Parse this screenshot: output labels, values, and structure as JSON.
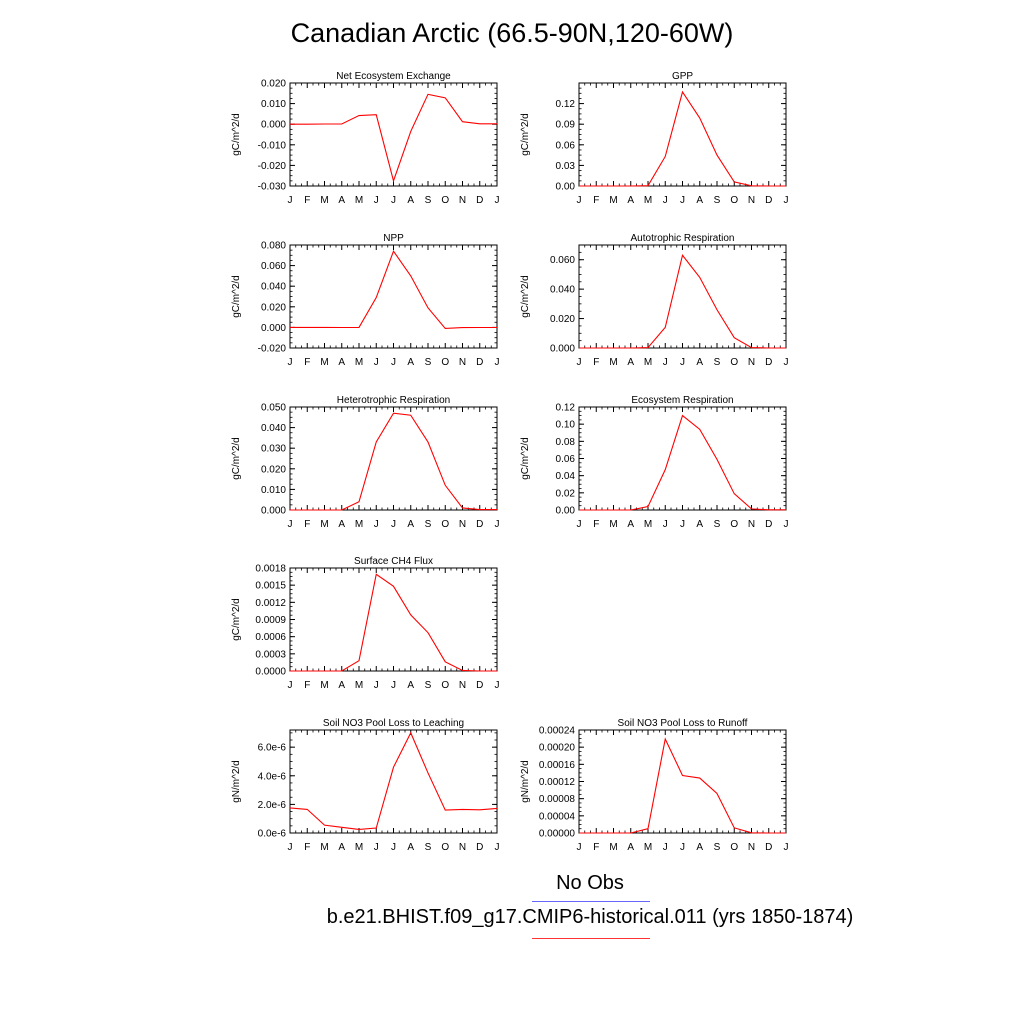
{
  "title": "Canadian Arctic (66.5-90N,120-60W)",
  "month_labels": [
    "J",
    "F",
    "M",
    "A",
    "M",
    "J",
    "J",
    "A",
    "S",
    "O",
    "N",
    "D",
    "J"
  ],
  "legend": {
    "obs_label": "No Obs",
    "obs_color": "#6666ff",
    "case_label": "b.e21.BHIST.f09_g17.CMIP6-historical.011 (yrs 1850-1874)",
    "case_color": "#ff3333"
  },
  "chart_data": [
    {
      "type": "line",
      "title": "Net Ecosystem Exchange",
      "ylabel": "gC/m^2/d",
      "x": [
        "J",
        "F",
        "M",
        "A",
        "M",
        "J",
        "J",
        "A",
        "S",
        "O",
        "N",
        "D",
        "J"
      ],
      "ylim": [
        -0.03,
        0.02
      ],
      "yticks": [
        -0.03,
        -0.02,
        -0.01,
        0.0,
        0.01,
        0.02
      ],
      "yticklabels": [
        "-0.030",
        "-0.020",
        "-0.010",
        "0.000",
        "0.010",
        "0.020"
      ],
      "series": [
        {
          "values": [
            0.0,
            0.0,
            0.0001,
            0.0001,
            0.0042,
            0.0046,
            -0.0275,
            -0.0035,
            0.0145,
            0.0128,
            0.0012,
            0.0002,
            0.0002
          ],
          "color": "#ff0000"
        }
      ]
    },
    {
      "type": "line",
      "title": "GPP",
      "ylabel": "gC/m^2/d",
      "x": [
        "J",
        "F",
        "M",
        "A",
        "M",
        "J",
        "J",
        "A",
        "S",
        "O",
        "N",
        "D",
        "J"
      ],
      "ylim": [
        0,
        0.15
      ],
      "yticks": [
        0,
        0.03,
        0.06,
        0.09,
        0.12
      ],
      "yticklabels": [
        "0.00",
        "0.03",
        "0.06",
        "0.09",
        "0.12"
      ],
      "series": [
        {
          "values": [
            0,
            0,
            0,
            0,
            0.0005,
            0.043,
            0.137,
            0.099,
            0.045,
            0.006,
            0.0003,
            0,
            0
          ],
          "color": "#ff0000"
        }
      ]
    },
    {
      "type": "line",
      "title": "NPP",
      "ylabel": "gC/m^2/d",
      "x": [
        "J",
        "F",
        "M",
        "A",
        "M",
        "J",
        "J",
        "A",
        "S",
        "O",
        "N",
        "D",
        "J"
      ],
      "ylim": [
        -0.02,
        0.08
      ],
      "yticks": [
        -0.02,
        0.0,
        0.02,
        0.04,
        0.06,
        0.08
      ],
      "yticklabels": [
        "-0.020",
        "0.000",
        "0.020",
        "0.040",
        "0.060",
        "0.080"
      ],
      "series": [
        {
          "values": [
            0.0,
            0.0,
            0.0,
            -0.0001,
            0.0,
            0.029,
            0.074,
            0.05,
            0.019,
            -0.001,
            -0.0002,
            -0.0001,
            -0.0001
          ],
          "color": "#ff0000"
        }
      ]
    },
    {
      "type": "line",
      "title": "Autotrophic Respiration",
      "ylabel": "gC/m^2/d",
      "x": [
        "J",
        "F",
        "M",
        "A",
        "M",
        "J",
        "J",
        "A",
        "S",
        "O",
        "N",
        "D",
        "J"
      ],
      "ylim": [
        0,
        0.07
      ],
      "yticks": [
        0,
        0.02,
        0.04,
        0.06
      ],
      "yticklabels": [
        "0.000",
        "0.020",
        "0.040",
        "0.060"
      ],
      "series": [
        {
          "values": [
            0,
            0,
            0,
            0,
            0.0003,
            0.014,
            0.063,
            0.048,
            0.026,
            0.007,
            0.0003,
            0,
            0
          ],
          "color": "#ff0000"
        }
      ]
    },
    {
      "type": "line",
      "title": "Heterotrophic Respiration",
      "ylabel": "gC/m^2/d",
      "x": [
        "J",
        "F",
        "M",
        "A",
        "M",
        "J",
        "J",
        "A",
        "S",
        "O",
        "N",
        "D",
        "J"
      ],
      "ylim": [
        0,
        0.05
      ],
      "yticks": [
        0,
        0.01,
        0.02,
        0.03,
        0.04,
        0.05
      ],
      "yticklabels": [
        "0.000",
        "0.010",
        "0.020",
        "0.030",
        "0.040",
        "0.050"
      ],
      "series": [
        {
          "values": [
            0,
            0,
            0,
            0,
            0.004,
            0.033,
            0.047,
            0.046,
            0.033,
            0.012,
            0.001,
            0.0002,
            0.0002
          ],
          "color": "#ff0000"
        }
      ]
    },
    {
      "type": "line",
      "title": "Ecosystem Respiration",
      "ylabel": "gC/m^2/d",
      "x": [
        "J",
        "F",
        "M",
        "A",
        "M",
        "J",
        "J",
        "A",
        "S",
        "O",
        "N",
        "D",
        "J"
      ],
      "ylim": [
        0,
        0.12
      ],
      "yticks": [
        0,
        0.02,
        0.04,
        0.06,
        0.08,
        0.1,
        0.12
      ],
      "yticklabels": [
        "0.00",
        "0.02",
        "0.04",
        "0.06",
        "0.08",
        "0.10",
        "0.12"
      ],
      "series": [
        {
          "values": [
            0,
            0,
            0,
            0,
            0.004,
            0.047,
            0.11,
            0.094,
            0.059,
            0.019,
            0.0013,
            0.0002,
            0.0002
          ],
          "color": "#ff0000"
        }
      ]
    },
    {
      "type": "line",
      "title": "Surface CH4 Flux",
      "ylabel": "gC/m^2/d",
      "x": [
        "J",
        "F",
        "M",
        "A",
        "M",
        "J",
        "J",
        "A",
        "S",
        "O",
        "N",
        "D",
        "J"
      ],
      "ylim": [
        0,
        0.0018
      ],
      "yticks": [
        0,
        0.0003,
        0.0006,
        0.0009,
        0.0012,
        0.0015,
        0.0018
      ],
      "yticklabels": [
        "0.0000",
        "0.0003",
        "0.0006",
        "0.0009",
        "0.0012",
        "0.0015",
        "0.0018"
      ],
      "series": [
        {
          "values": [
            0,
            0,
            0,
            0,
            0.00018,
            0.00169,
            0.00148,
            0.00098,
            0.00067,
            0.00016,
            1e-05,
            0,
            0
          ],
          "color": "#ff0000"
        }
      ]
    },
    {
      "type": "line",
      "title": "Soil NO3 Pool Loss to Leaching",
      "ylabel": "gN/m^2/d",
      "x": [
        "J",
        "F",
        "M",
        "A",
        "M",
        "J",
        "J",
        "A",
        "S",
        "O",
        "N",
        "D",
        "J"
      ],
      "ylim": [
        0,
        7.2e-06
      ],
      "yticks": [
        0,
        2e-06,
        4e-06,
        6e-06
      ],
      "yticklabels": [
        "0.0e-6",
        "2.0e-6",
        "4.0e-6",
        "6.0e-6"
      ],
      "series": [
        {
          "values": [
            1.75e-06,
            1.65e-06,
            5.5e-07,
            4e-07,
            2.5e-07,
            3.5e-07,
            4.6e-06,
            7e-06,
            4.2e-06,
            1.6e-06,
            1.65e-06,
            1.62e-06,
            1.72e-06
          ],
          "color": "#ff0000"
        }
      ]
    },
    {
      "type": "line",
      "title": "Soil NO3 Pool Loss to Runoff",
      "ylabel": "gN/m^2/d",
      "x": [
        "J",
        "F",
        "M",
        "A",
        "M",
        "J",
        "J",
        "A",
        "S",
        "O",
        "N",
        "D",
        "J"
      ],
      "ylim": [
        0,
        0.00024
      ],
      "yticks": [
        0,
        4e-05,
        8e-05,
        0.00012,
        0.00016,
        0.0002,
        0.00024
      ],
      "yticklabels": [
        "0.00000",
        "0.00004",
        "0.00008",
        "0.00012",
        "0.00016",
        "0.00020",
        "0.00024"
      ],
      "series": [
        {
          "values": [
            0,
            0,
            0,
            0,
            1e-05,
            0.000219,
            0.000134,
            0.000128,
            9.2e-05,
            1.2e-05,
            5e-07,
            0,
            0
          ],
          "color": "#ff0000"
        }
      ]
    }
  ]
}
